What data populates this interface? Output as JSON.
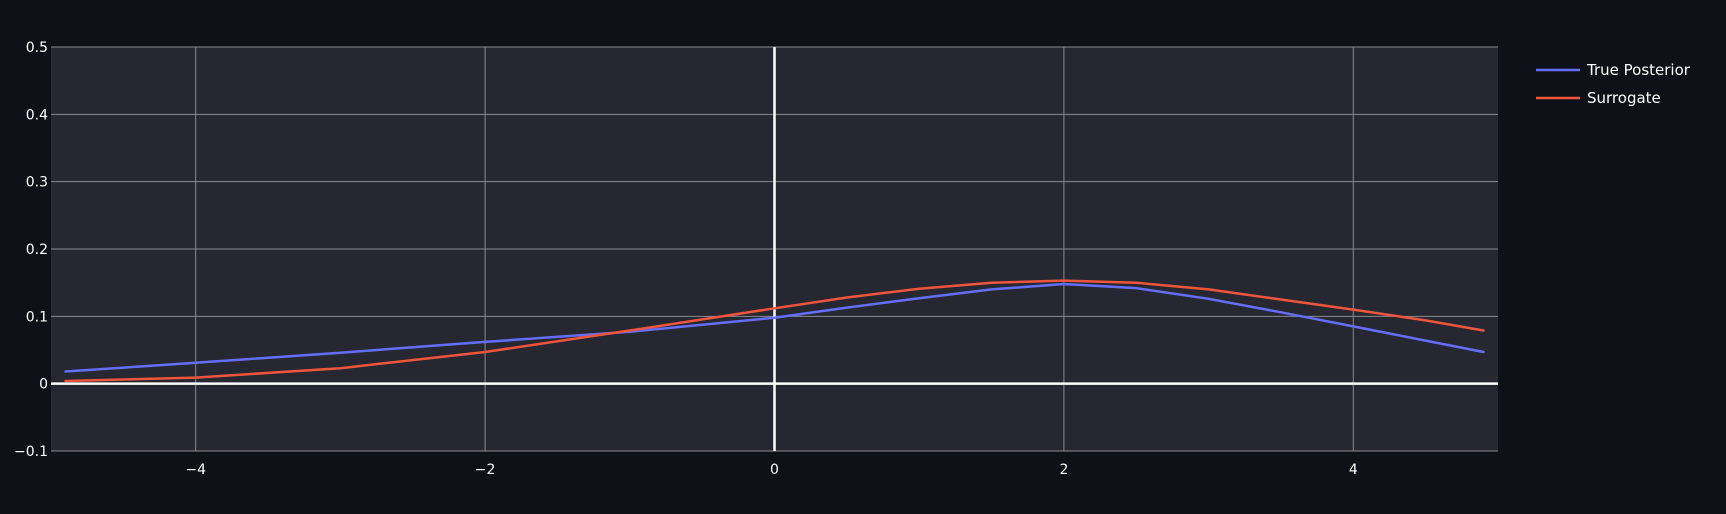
{
  "colors": {
    "background": "#0e1117",
    "plot_bg": "#262730",
    "grid": "#8a8a8f",
    "zero_line": "#ffffff"
  },
  "chart_data": {
    "type": "line",
    "xlim": [
      -5,
      5
    ],
    "ylim": [
      -0.1,
      0.5
    ],
    "x_ticks": [
      -4,
      -2,
      0,
      2,
      4
    ],
    "x_tick_labels": [
      "−4",
      "−2",
      "0",
      "2",
      "4"
    ],
    "y_ticks": [
      -0.1,
      0,
      0.1,
      0.2,
      0.3,
      0.4,
      0.5
    ],
    "y_tick_labels": [
      "−0.1",
      "0",
      "0.1",
      "0.2",
      "0.3",
      "0.4",
      "0.5"
    ],
    "grid": true,
    "legend_position": "top-right",
    "x": [
      -4.9,
      -4.0,
      -3.0,
      -2.0,
      -1.0,
      0.0,
      0.5,
      1.0,
      1.5,
      2.0,
      2.5,
      3.0,
      3.5,
      4.0,
      4.5,
      4.9
    ],
    "series": [
      {
        "name": "True Posterior",
        "color": "#636efa",
        "values": [
          0.018,
          0.031,
          0.046,
          0.062,
          0.077,
          0.098,
          0.113,
          0.127,
          0.14,
          0.148,
          0.142,
          0.126,
          0.106,
          0.085,
          0.064,
          0.047
        ]
      },
      {
        "name": "Surrogate",
        "color": "#ef553b",
        "values": [
          0.004,
          0.009,
          0.023,
          0.047,
          0.079,
          0.112,
          0.128,
          0.141,
          0.15,
          0.153,
          0.15,
          0.14,
          0.125,
          0.11,
          0.094,
          0.079
        ]
      }
    ]
  }
}
